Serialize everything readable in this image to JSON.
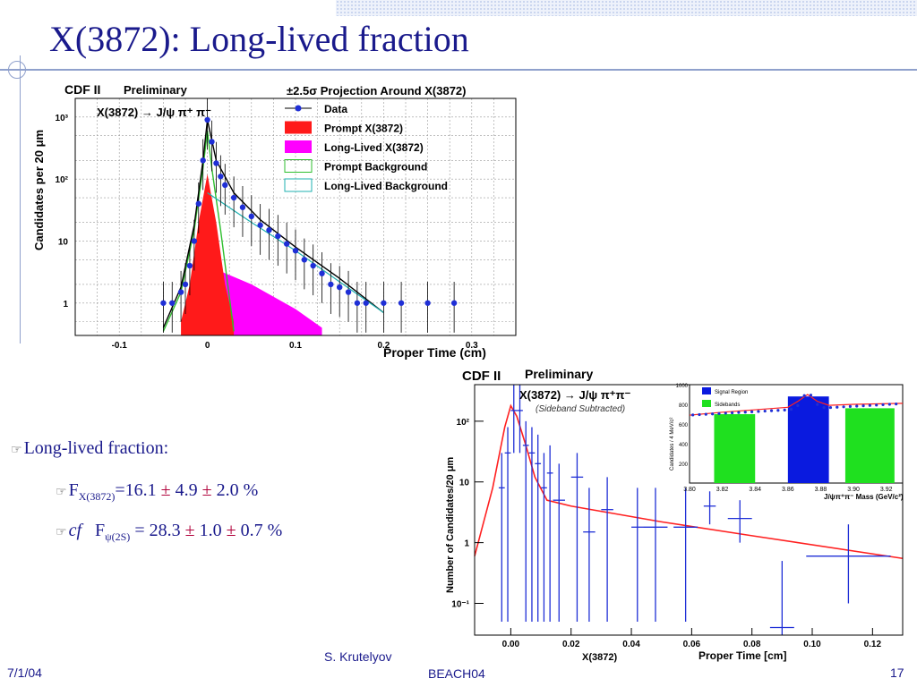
{
  "slide": {
    "title": "X(3872): Long-lived fraction",
    "bullets": {
      "b1": "Long-lived fraction:",
      "b2_F": "F",
      "b2_sub": "X(3872)",
      "b2_eq": "=16.1",
      "b2_v2": " 4.9",
      "b2_v3": " 2.0 %",
      "b3_cf": "cf",
      "b3_F": "F",
      "b3_sub": "ψ(2S)",
      "b3_eq": " = 28.3",
      "b3_v2": " 1.0",
      "b3_v3": " 0.7 %",
      "pm": "±"
    },
    "footer": {
      "date": "7/1/04",
      "author": "S. Krutelyov",
      "conference": "BEACH04",
      "page": "17"
    }
  },
  "chart_data": [
    {
      "type": "line",
      "header_left": "CDF II",
      "header_prelim": "Preliminary",
      "title": "±2.5σ Projection Around X(3872)",
      "annotation": "X(3872) → J/ψ π⁺ π⁻",
      "xlabel": "Proper Time (cm)",
      "ylabel": "Candidates per 20 μm",
      "xlim": [
        -0.15,
        0.35
      ],
      "ylim": [
        0.3,
        2000
      ],
      "log_y": true,
      "grid": true,
      "legend_position": "top-right",
      "x_ticks": [
        "-0.1",
        "0",
        "0.1",
        "0.2",
        "0.3"
      ],
      "y_ticks": [
        "1",
        "10",
        "10²",
        "10³"
      ],
      "legend": [
        "Data",
        "Prompt X(3872)",
        "Long-Lived X(3872)",
        "Prompt Background",
        "Long-Lived Background"
      ],
      "colors": {
        "data": "#1f2fd6",
        "prompt": "#ff1a1a",
        "longlived": "#ff00ff",
        "prompt_bkg": "#2fbf2f",
        "ll_bkg": "#1fb0b0",
        "total": "#000000"
      },
      "series": [
        {
          "name": "Data",
          "x": [
            -0.05,
            -0.04,
            -0.03,
            -0.025,
            -0.02,
            -0.015,
            -0.01,
            -0.005,
            0.0,
            0.005,
            0.01,
            0.015,
            0.02,
            0.03,
            0.04,
            0.05,
            0.06,
            0.07,
            0.08,
            0.09,
            0.1,
            0.11,
            0.12,
            0.13,
            0.14,
            0.15,
            0.16,
            0.17,
            0.18,
            0.2,
            0.22,
            0.25,
            0.28
          ],
          "y": [
            1,
            1,
            1.5,
            2,
            4,
            10,
            40,
            200,
            900,
            400,
            180,
            110,
            80,
            50,
            35,
            25,
            18,
            15,
            12,
            9,
            7,
            5,
            4,
            3,
            2,
            1.8,
            1.5,
            1,
            1,
            1,
            1,
            1,
            1
          ]
        },
        {
          "name": "Prompt X(3872)",
          "x": [
            -0.03,
            -0.02,
            -0.01,
            0.0,
            0.01,
            0.02,
            0.03
          ],
          "y": [
            0.5,
            2,
            20,
            120,
            20,
            2,
            0.5
          ]
        },
        {
          "name": "Long-Lived X(3872)",
          "x": [
            0.0,
            0.05,
            0.1,
            0.13
          ],
          "y": [
            4,
            2,
            0.8,
            0.4
          ]
        }
      ]
    },
    {
      "type": "scatter",
      "header_left": "CDF II",
      "header_prelim": "Preliminary",
      "annotation": "X(3872) → J/ψ π⁺π⁻",
      "subtitle": "(Sideband Subtracted)",
      "xlabel": "Proper Time  [cm]",
      "x_extra_label": "X(3872)",
      "ylabel": "Number of Candidates/20 μm",
      "xlim": [
        -0.012,
        0.13
      ],
      "ylim": [
        0.03,
        400
      ],
      "log_y": true,
      "x_ticks": [
        "0.00",
        "0.02",
        "0.04",
        "0.06",
        "0.08",
        "0.10",
        "0.12"
      ],
      "y_ticks": [
        "10⁻¹",
        "1",
        "10",
        "10²"
      ],
      "colors": {
        "data": "#1f2fd6",
        "fit": "#ff2020"
      },
      "series": [
        {
          "name": "Data",
          "x": [
            -0.003,
            -0.001,
            0.001,
            0.003,
            0.005,
            0.007,
            0.009,
            0.011,
            0.013,
            0.016,
            0.022,
            0.026,
            0.032,
            0.042,
            0.048,
            0.058,
            0.066,
            0.076,
            0.09,
            0.112
          ],
          "y": [
            8,
            30,
            150,
            150,
            40,
            30,
            20,
            8,
            14,
            5,
            12,
            1.5,
            3.5,
            1.8,
            1.8,
            1.8,
            4,
            2.5,
            0.04,
            0.6
          ],
          "xerr": [
            0.001,
            0.001,
            0.001,
            0.001,
            0.001,
            0.001,
            0.001,
            0.001,
            0.001,
            0.002,
            0.002,
            0.002,
            0.002,
            0.002,
            0.004,
            0.004,
            0.002,
            0.004,
            0.004,
            0.014
          ],
          "ylo": [
            0.05,
            0.05,
            30,
            30,
            0.05,
            0.05,
            0.05,
            0.05,
            0.05,
            0.05,
            0.05,
            0.05,
            0.05,
            0.05,
            0.05,
            0.05,
            2,
            1,
            0.03,
            0.1
          ],
          "yhi": [
            30,
            80,
            400,
            400,
            100,
            80,
            60,
            30,
            40,
            20,
            30,
            8,
            12,
            8,
            8,
            8,
            7,
            5,
            0.5,
            2
          ]
        }
      ],
      "inset": {
        "type": "histogram",
        "xlabel": "J/ψπ⁺π⁻ Mass  (GeV/c²)",
        "ylabel": "Candidates / 4 MeV/c²",
        "xlim": [
          3.8,
          3.93
        ],
        "ylim": [
          0,
          1000
        ],
        "x_ticks": [
          "3.80",
          "3.82",
          "3.84",
          "3.86",
          "3.88",
          "3.90",
          "3.92"
        ],
        "y_ticks": [
          "200",
          "400",
          "600",
          "800",
          "1000"
        ],
        "legend": [
          "Signal Region",
          "Sidebands"
        ],
        "colors": {
          "signal": "#0a1adf",
          "sidebands": "#1fe01f",
          "fit": "#ff2020",
          "points": "#1f2fd6"
        },
        "regions": [
          {
            "name": "Sidebands",
            "x_range": [
              3.815,
              3.84
            ],
            "value": 700
          },
          {
            "name": "Signal Region",
            "x_range": [
              3.86,
              3.885
            ],
            "value": 880
          },
          {
            "name": "Sidebands",
            "x_range": [
              3.895,
              3.925
            ],
            "value": 760
          }
        ]
      }
    }
  ]
}
